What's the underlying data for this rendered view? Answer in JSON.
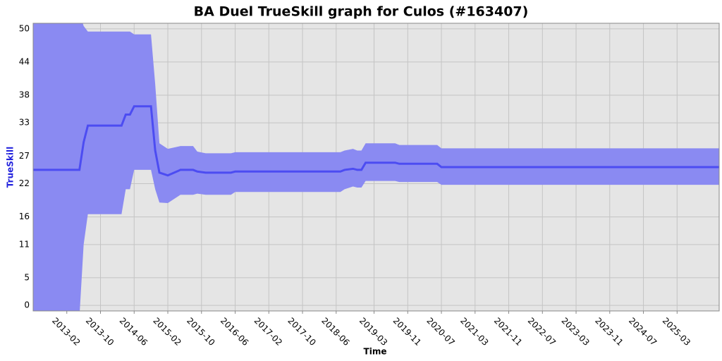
{
  "chart_data": {
    "type": "band-line",
    "title": "BA Duel TrueSkill graph for Culos (#163407)",
    "x_label": "Time",
    "y_label": "TrueSkill",
    "x": [
      "2012-06",
      "2013-05",
      "2013-06",
      "2013-07",
      "2014-03",
      "2014-04",
      "2014-05",
      "2014-06",
      "2014-10",
      "2014-11",
      "2014-12",
      "2015-02",
      "2015-05",
      "2015-08",
      "2015-09",
      "2015-11",
      "2016-05",
      "2016-06",
      "2018-07",
      "2018-08",
      "2018-10",
      "2018-11",
      "2018-12",
      "2019-01",
      "2019-08",
      "2019-09",
      "2020-06",
      "2020-07",
      "2026-01"
    ],
    "series": [
      {
        "color": "#4c4cf2",
        "band_color": "#8a8af2",
        "values": [
          24.5,
          24.5,
          29.5,
          32.5,
          32.5,
          34.5,
          34.5,
          36,
          36,
          28,
          24,
          23.5,
          24.5,
          24.5,
          24.2,
          24,
          24,
          24.2,
          24.2,
          24.5,
          24.7,
          24.5,
          24.5,
          25.8,
          25.8,
          25.6,
          25.6,
          25,
          25
        ],
        "lower": [
          -2,
          -2,
          11,
          16.5,
          16.5,
          21,
          21,
          24.5,
          24.5,
          21,
          18.6,
          18.5,
          20,
          20,
          20.2,
          20,
          20,
          20.5,
          20.5,
          21,
          21.5,
          21.3,
          21.3,
          22.5,
          22.5,
          22.3,
          22.3,
          21.8,
          21.8
        ],
        "upper": [
          53,
          53,
          50.5,
          49.5,
          49.5,
          49.5,
          49.5,
          49,
          49,
          40,
          29.3,
          28.3,
          28.8,
          28.8,
          27.8,
          27.5,
          27.5,
          27.7,
          27.7,
          28,
          28.3,
          28,
          28,
          29.3,
          29.3,
          29,
          29,
          28.4,
          28.4
        ]
      }
    ],
    "xlim": [
      "2012-06",
      "2026-01"
    ],
    "xticks": [
      "2013-02",
      "2013-10",
      "2014-06",
      "2015-02",
      "2015-10",
      "2016-06",
      "2017-02",
      "2017-10",
      "2018-06",
      "2019-03",
      "2019-11",
      "2020-07",
      "2021-03",
      "2021-11",
      "2022-07",
      "2023-03",
      "2023-11",
      "2024-07",
      "2025-03"
    ],
    "ylim": [
      -1,
      51
    ],
    "yticks": [
      0,
      5,
      11,
      16,
      22,
      27,
      33,
      38,
      44,
      50
    ],
    "grid": true
  }
}
